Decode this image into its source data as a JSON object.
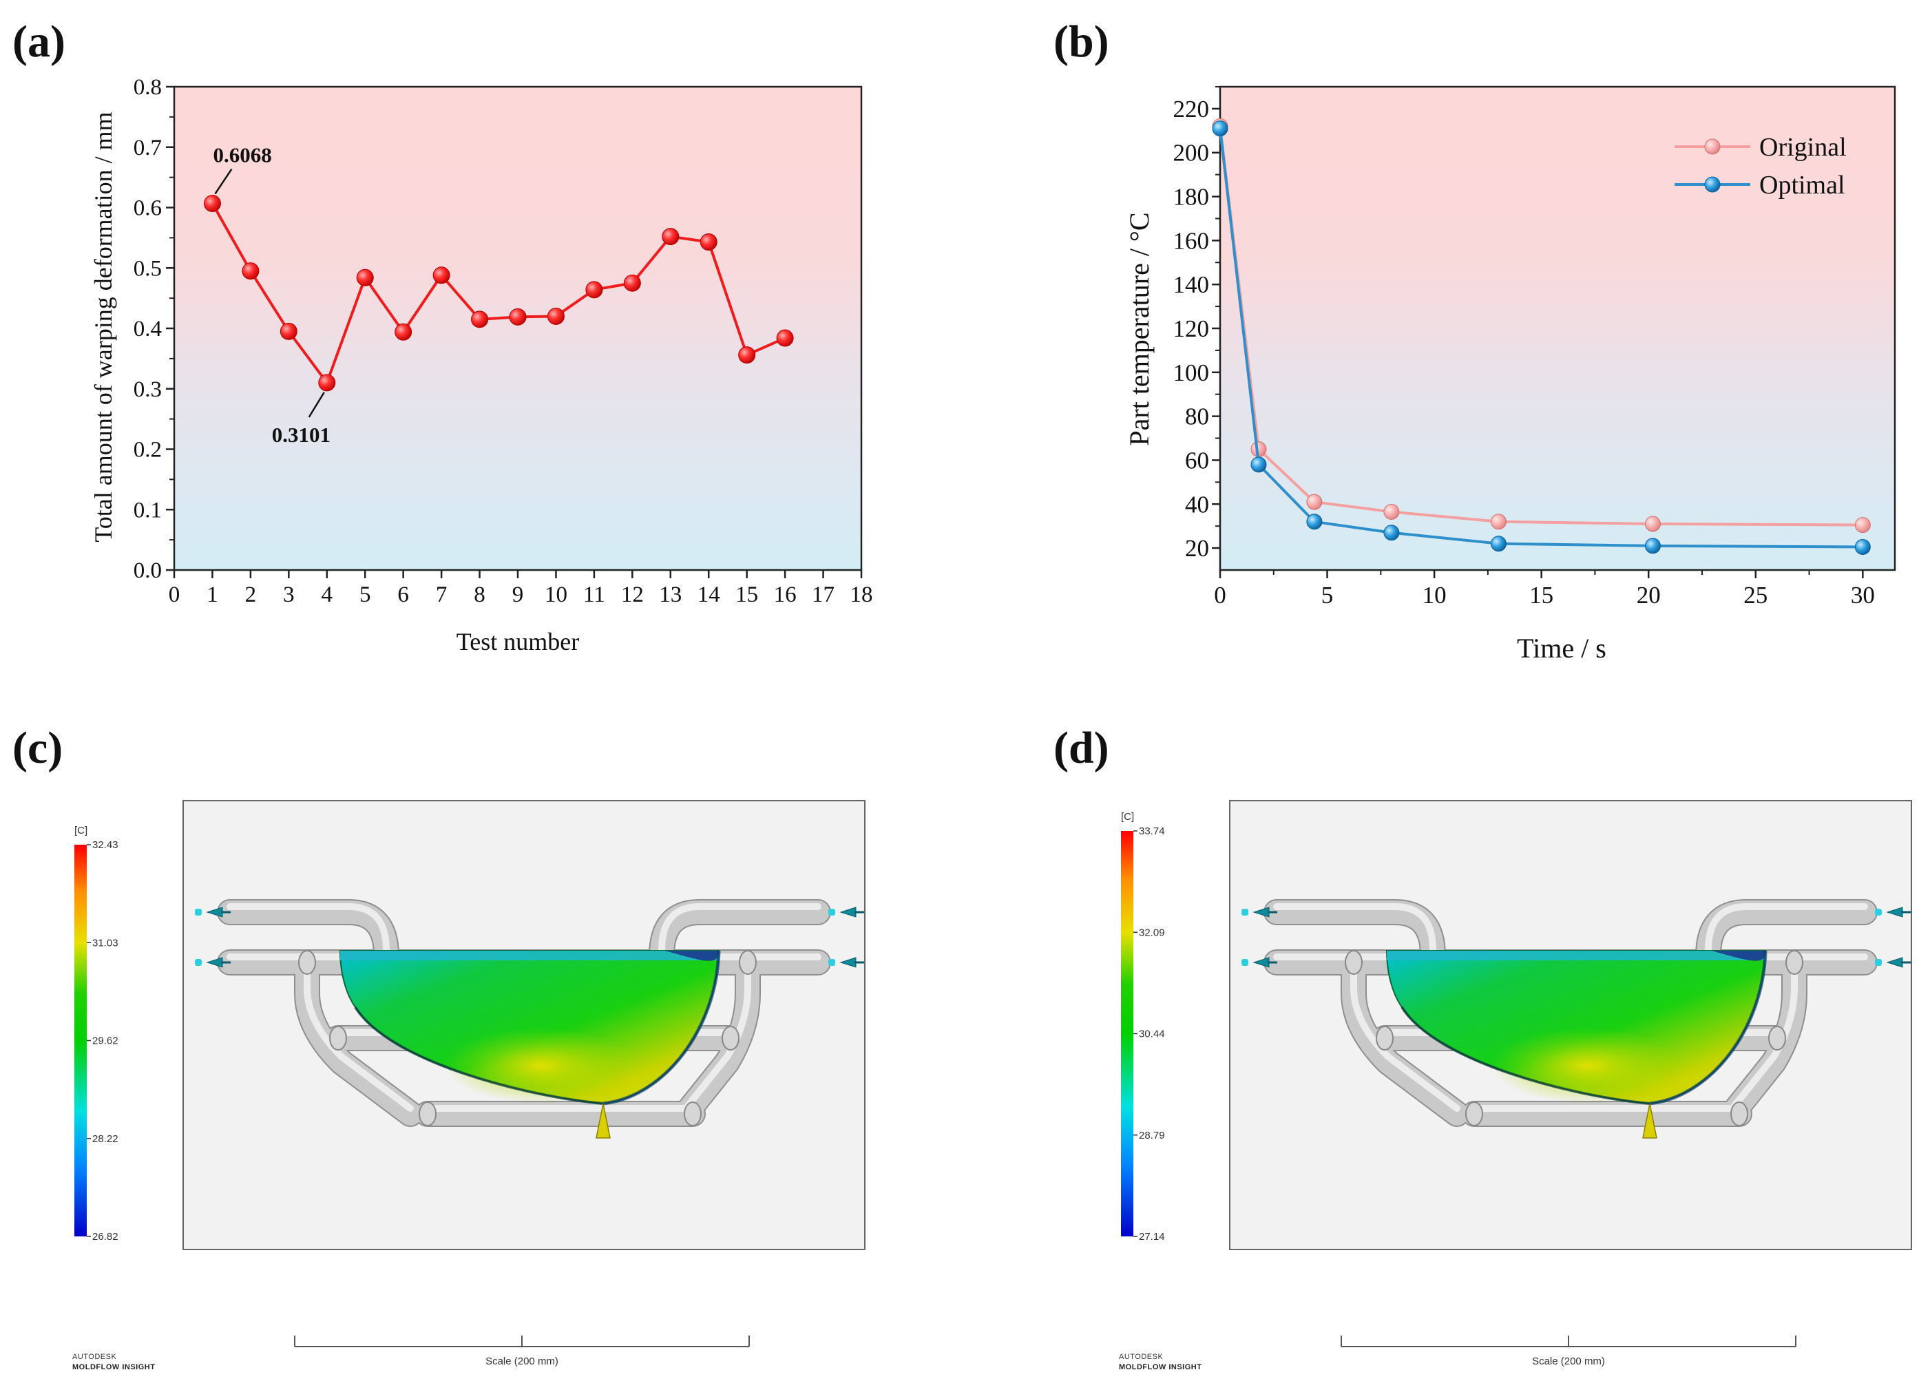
{
  "panels": {
    "a": "(a)",
    "b": "(b)",
    "c": "(c)",
    "d": "(d)"
  },
  "chart_data": [
    {
      "type": "line",
      "panel": "(a)",
      "xlabel": "Test number",
      "ylabel": "Total amount of warping deformation / mm",
      "xlim": [
        0,
        18
      ],
      "ylim": [
        0.0,
        0.8
      ],
      "xticks": [
        0,
        1,
        2,
        3,
        4,
        5,
        6,
        7,
        8,
        9,
        10,
        11,
        12,
        13,
        14,
        15,
        16,
        17,
        18
      ],
      "yticks": [
        0.0,
        0.1,
        0.2,
        0.3,
        0.4,
        0.5,
        0.6,
        0.7,
        0.8
      ],
      "ytick_labels": [
        "0.0",
        "0.1",
        "0.2",
        "0.3",
        "0.4",
        "0.5",
        "0.6",
        "0.7",
        "0.8"
      ],
      "series": [
        {
          "color": "#ee1c1c",
          "x": [
            1,
            2,
            3,
            4,
            5,
            6,
            7,
            8,
            9,
            10,
            11,
            12,
            13,
            14,
            15,
            16
          ],
          "y": [
            0.6068,
            0.495,
            0.395,
            0.3101,
            0.484,
            0.394,
            0.488,
            0.415,
            0.419,
            0.42,
            0.464,
            0.475,
            0.552,
            0.543,
            0.356,
            0.384
          ]
        }
      ],
      "annotations": [
        {
          "text": "0.6068",
          "x": 1,
          "y": 0.6068
        },
        {
          "text": "0.3101",
          "x": 4,
          "y": 0.3101
        }
      ],
      "background_gradient": [
        "#fdd8d8",
        "#d6edf6"
      ]
    },
    {
      "type": "line",
      "panel": "(b)",
      "xlabel": "Time / s",
      "ylabel": "Part temperature / °C",
      "xlim": [
        0,
        31.5
      ],
      "ylim": [
        10,
        230
      ],
      "xticks": [
        0,
        5,
        10,
        15,
        20,
        25,
        30
      ],
      "yticks": [
        20,
        40,
        60,
        80,
        100,
        120,
        140,
        160,
        180,
        200,
        220
      ],
      "legend_position": "top-right",
      "series": [
        {
          "name": "Original",
          "color": "#f4a0a0",
          "x": [
            0,
            1.8,
            4.4,
            8,
            13,
            20.2,
            30
          ],
          "y": [
            212,
            65,
            41,
            36.5,
            32,
            31,
            30.5
          ]
        },
        {
          "name": "Optimal",
          "color": "#2f8fcb",
          "x": [
            0,
            1.8,
            4.4,
            8,
            13,
            20.2,
            30
          ],
          "y": [
            211,
            58,
            32,
            27,
            22,
            21,
            20.5
          ]
        }
      ],
      "background_gradient": [
        "#fdd8d8",
        "#d6edf6"
      ]
    }
  ],
  "simulations": [
    {
      "panel": "(c)",
      "unit": "[C]",
      "scale_labels": [
        "32.43",
        "31.03",
        "29.62",
        "28.22",
        "26.82"
      ],
      "brand_line1": "AUTODESK",
      "brand_line2": "MOLDFLOW INSIGHT",
      "scale_bar": "Scale (200 mm)"
    },
    {
      "panel": "(d)",
      "unit": "[C]",
      "scale_labels": [
        "33.74",
        "32.09",
        "30.44",
        "28.79",
        "27.14"
      ],
      "brand_line1": "AUTODESK",
      "brand_line2": "MOLDFLOW INSIGHT",
      "scale_bar": "Scale (200 mm)"
    }
  ]
}
